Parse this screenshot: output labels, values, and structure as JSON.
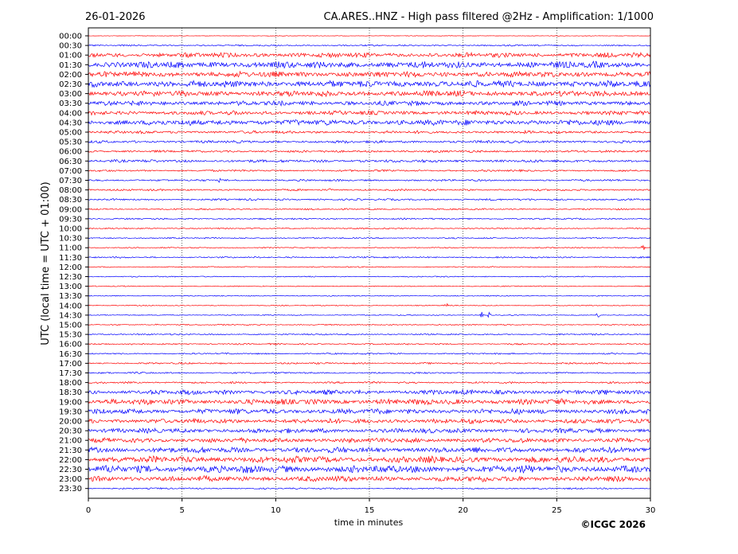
{
  "header": {
    "date": "26-01-2026",
    "title": "CA.ARES..HNZ - High pass filtered @2Hz - Amplification: 1/1000"
  },
  "footer": {
    "copyright": "©ICGC 2026"
  },
  "colors": {
    "red": "#ff0000",
    "blue": "#0000ff",
    "grid": "#000000"
  },
  "chart_data": {
    "type": "line",
    "title": "CA.ARES..HNZ - High pass filtered @2Hz - Amplification: 1/1000",
    "xlabel": "time in minutes",
    "ylabel": "UTC (local time = UTC + 01:00)",
    "xlim": [
      0,
      30
    ],
    "x_ticks": [
      0,
      5,
      10,
      15,
      20,
      25,
      30
    ],
    "x_grid": [
      5,
      10,
      15,
      20,
      25
    ],
    "y_labels": [
      "00:00",
      "00:30",
      "01:00",
      "01:30",
      "02:00",
      "02:30",
      "03:00",
      "03:30",
      "04:00",
      "04:30",
      "05:00",
      "05:30",
      "06:00",
      "06:30",
      "07:00",
      "07:30",
      "08:00",
      "08:30",
      "09:00",
      "09:30",
      "10:00",
      "10:30",
      "11:00",
      "11:30",
      "12:00",
      "12:30",
      "13:00",
      "13:30",
      "14:00",
      "14:30",
      "15:00",
      "15:30",
      "16:00",
      "16:30",
      "17:00",
      "17:30",
      "18:00",
      "18:30",
      "19:00",
      "19:30",
      "20:00",
      "20:30",
      "21:00",
      "21:30",
      "22:00",
      "22:30",
      "23:00",
      "23:30"
    ],
    "trace_colors": [
      "red",
      "blue"
    ],
    "trace_amplitude": [
      0.3,
      0.8,
      2.5,
      3.5,
      3.0,
      3.5,
      3.0,
      2.5,
      2.2,
      3.0,
      1.5,
      1.4,
      1.2,
      1.5,
      1.0,
      1.0,
      1.0,
      1.0,
      0.8,
      0.8,
      0.7,
      0.7,
      0.6,
      0.8,
      0.6,
      0.6,
      0.5,
      0.5,
      0.5,
      0.5,
      0.6,
      0.8,
      0.8,
      0.8,
      0.9,
      0.9,
      1.0,
      2.5,
      3.0,
      2.8,
      2.5,
      2.5,
      2.5,
      3.0,
      3.5,
      4.0,
      3.0,
      0.8
    ],
    "events": [
      {
        "row": "11:00",
        "minute": 29.6,
        "amp": 6
      },
      {
        "row": "14:00",
        "minute": 19.1,
        "amp": 5
      },
      {
        "row": "14:30",
        "minute": 21.0,
        "amp": 4
      },
      {
        "row": "14:30",
        "minute": 21.4,
        "amp": 5
      },
      {
        "row": "14:30",
        "minute": 27.2,
        "amp": 5
      },
      {
        "row": "15:00",
        "minute": 3.6,
        "amp": 3
      },
      {
        "row": "08:00",
        "minute": 12.9,
        "amp": 3
      },
      {
        "row": "07:30",
        "minute": 7.0,
        "amp": 3
      }
    ]
  }
}
